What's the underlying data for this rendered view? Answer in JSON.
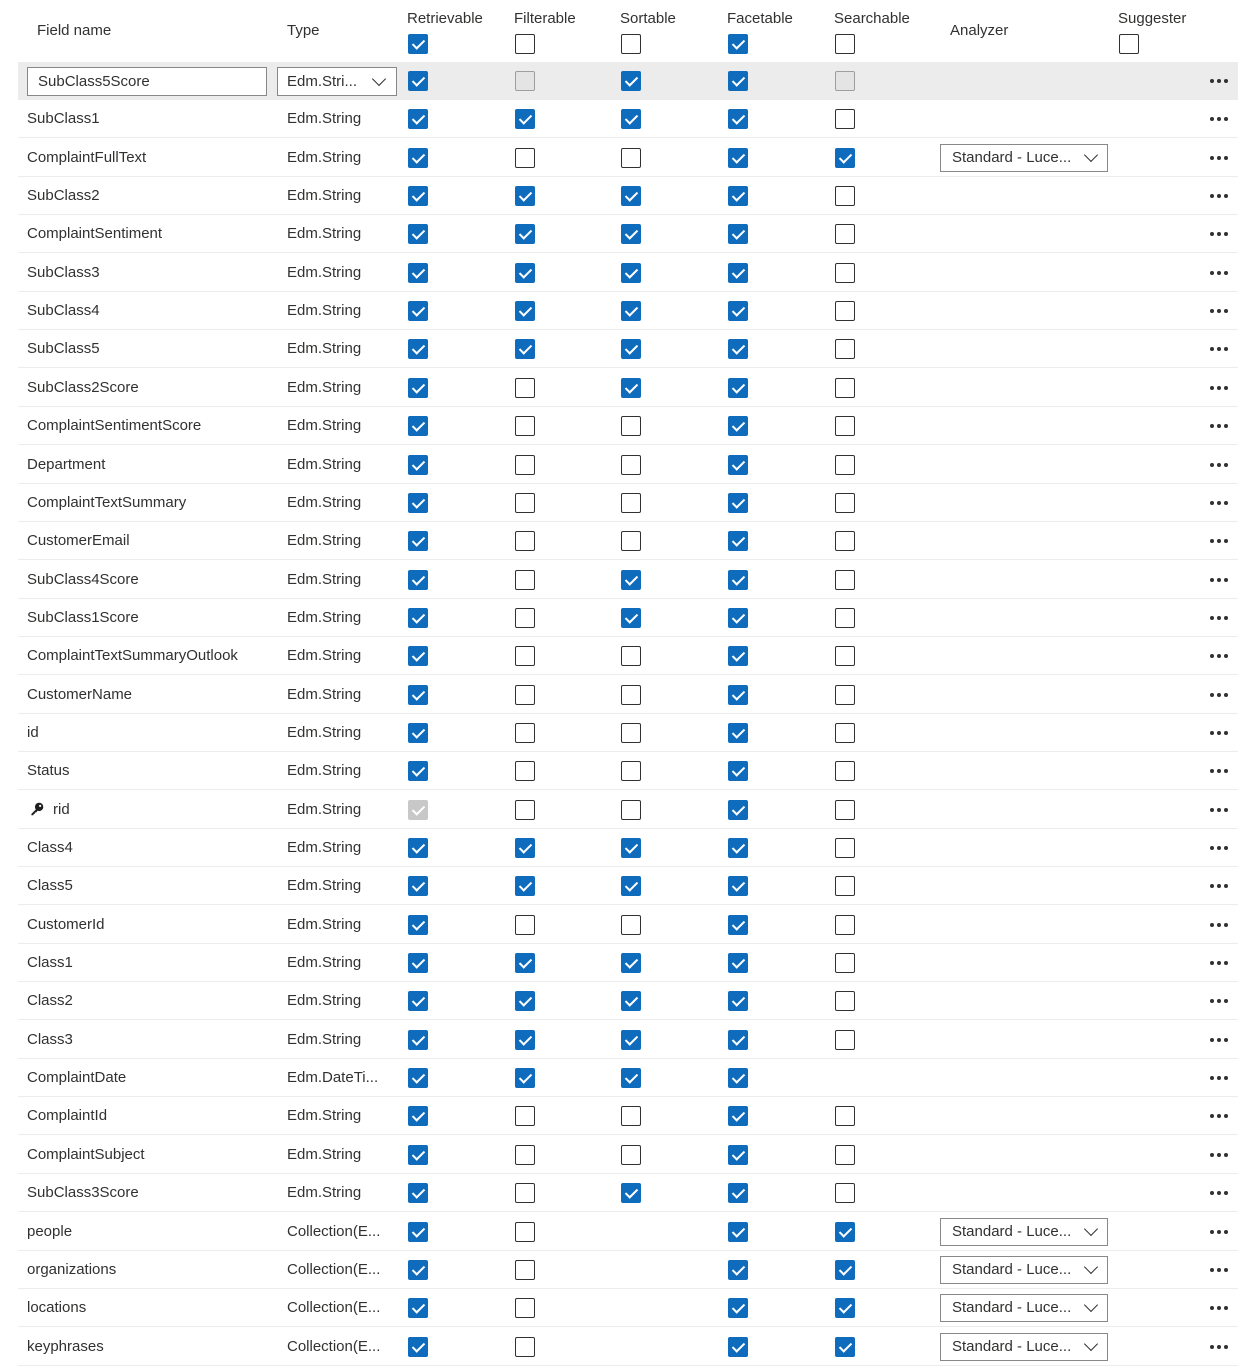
{
  "headers": {
    "field_name": "Field name",
    "type": "Type",
    "retrievable": "Retrievable",
    "filterable": "Filterable",
    "sortable": "Sortable",
    "facetable": "Facetable",
    "searchable": "Searchable",
    "analyzer": "Analyzer",
    "suggester": "Suggester"
  },
  "header_checks": {
    "retrievable": true,
    "filterable": false,
    "sortable": false,
    "facetable": true,
    "searchable": false,
    "suggester": false
  },
  "colors": {
    "accent": "#0f6cbd",
    "row_highlight": "#ececec"
  },
  "rows": [
    {
      "name": "SubClass5Score",
      "type": "Edm.Stri...",
      "r": true,
      "f": false,
      "s": true,
      "fa": true,
      "se": false,
      "an": "",
      "editing": true,
      "f_disabled": true,
      "se_disabled": true
    },
    {
      "name": "SubClass1",
      "type": "Edm.String",
      "r": true,
      "f": true,
      "s": true,
      "fa": true,
      "se": false,
      "an": ""
    },
    {
      "name": "ComplaintFullText",
      "type": "Edm.String",
      "r": true,
      "f": false,
      "s": false,
      "fa": true,
      "se": true,
      "an": "Standard - Luce..."
    },
    {
      "name": "SubClass2",
      "type": "Edm.String",
      "r": true,
      "f": true,
      "s": true,
      "fa": true,
      "se": false,
      "an": ""
    },
    {
      "name": "ComplaintSentiment",
      "type": "Edm.String",
      "r": true,
      "f": true,
      "s": true,
      "fa": true,
      "se": false,
      "an": ""
    },
    {
      "name": "SubClass3",
      "type": "Edm.String",
      "r": true,
      "f": true,
      "s": true,
      "fa": true,
      "se": false,
      "an": ""
    },
    {
      "name": "SubClass4",
      "type": "Edm.String",
      "r": true,
      "f": true,
      "s": true,
      "fa": true,
      "se": false,
      "an": ""
    },
    {
      "name": "SubClass5",
      "type": "Edm.String",
      "r": true,
      "f": true,
      "s": true,
      "fa": true,
      "se": false,
      "an": ""
    },
    {
      "name": "SubClass2Score",
      "type": "Edm.String",
      "r": true,
      "f": false,
      "s": true,
      "fa": true,
      "se": false,
      "an": ""
    },
    {
      "name": "ComplaintSentimentScore",
      "type": "Edm.String",
      "r": true,
      "f": false,
      "s": false,
      "fa": true,
      "se": false,
      "an": ""
    },
    {
      "name": "Department",
      "type": "Edm.String",
      "r": true,
      "f": false,
      "s": false,
      "fa": true,
      "se": false,
      "an": ""
    },
    {
      "name": "ComplaintTextSummary",
      "type": "Edm.String",
      "r": true,
      "f": false,
      "s": false,
      "fa": true,
      "se": false,
      "an": ""
    },
    {
      "name": "CustomerEmail",
      "type": "Edm.String",
      "r": true,
      "f": false,
      "s": false,
      "fa": true,
      "se": false,
      "an": ""
    },
    {
      "name": "SubClass4Score",
      "type": "Edm.String",
      "r": true,
      "f": false,
      "s": true,
      "fa": true,
      "se": false,
      "an": ""
    },
    {
      "name": "SubClass1Score",
      "type": "Edm.String",
      "r": true,
      "f": false,
      "s": true,
      "fa": true,
      "se": false,
      "an": ""
    },
    {
      "name": "ComplaintTextSummaryOutlook",
      "type": "Edm.String",
      "r": true,
      "f": false,
      "s": false,
      "fa": true,
      "se": false,
      "an": ""
    },
    {
      "name": "CustomerName",
      "type": "Edm.String",
      "r": true,
      "f": false,
      "s": false,
      "fa": true,
      "se": false,
      "an": ""
    },
    {
      "name": "id",
      "type": "Edm.String",
      "r": true,
      "f": false,
      "s": false,
      "fa": true,
      "se": false,
      "an": ""
    },
    {
      "name": "Status",
      "type": "Edm.String",
      "r": true,
      "f": false,
      "s": false,
      "fa": true,
      "se": false,
      "an": ""
    },
    {
      "name": "rid",
      "type": "Edm.String",
      "r": true,
      "f": false,
      "s": false,
      "fa": true,
      "se": false,
      "an": "",
      "key": true,
      "r_disabled": true
    },
    {
      "name": "Class4",
      "type": "Edm.String",
      "r": true,
      "f": true,
      "s": true,
      "fa": true,
      "se": false,
      "an": ""
    },
    {
      "name": "Class5",
      "type": "Edm.String",
      "r": true,
      "f": true,
      "s": true,
      "fa": true,
      "se": false,
      "an": ""
    },
    {
      "name": "CustomerId",
      "type": "Edm.String",
      "r": true,
      "f": false,
      "s": false,
      "fa": true,
      "se": false,
      "an": ""
    },
    {
      "name": "Class1",
      "type": "Edm.String",
      "r": true,
      "f": true,
      "s": true,
      "fa": true,
      "se": false,
      "an": ""
    },
    {
      "name": "Class2",
      "type": "Edm.String",
      "r": true,
      "f": true,
      "s": true,
      "fa": true,
      "se": false,
      "an": ""
    },
    {
      "name": "Class3",
      "type": "Edm.String",
      "r": true,
      "f": true,
      "s": true,
      "fa": true,
      "se": false,
      "an": ""
    },
    {
      "name": "ComplaintDate",
      "type": "Edm.DateTi...",
      "r": true,
      "f": true,
      "s": true,
      "fa": true,
      "se": null,
      "an": ""
    },
    {
      "name": "ComplaintId",
      "type": "Edm.String",
      "r": true,
      "f": false,
      "s": false,
      "fa": true,
      "se": false,
      "an": ""
    },
    {
      "name": "ComplaintSubject",
      "type": "Edm.String",
      "r": true,
      "f": false,
      "s": false,
      "fa": true,
      "se": false,
      "an": ""
    },
    {
      "name": "SubClass3Score",
      "type": "Edm.String",
      "r": true,
      "f": false,
      "s": true,
      "fa": true,
      "se": false,
      "an": ""
    },
    {
      "name": "people",
      "type": "Collection(E...",
      "r": true,
      "f": false,
      "s": null,
      "fa": true,
      "se": true,
      "an": "Standard - Luce..."
    },
    {
      "name": "organizations",
      "type": "Collection(E...",
      "r": true,
      "f": false,
      "s": null,
      "fa": true,
      "se": true,
      "an": "Standard - Luce..."
    },
    {
      "name": "locations",
      "type": "Collection(E...",
      "r": true,
      "f": false,
      "s": null,
      "fa": true,
      "se": true,
      "an": "Standard - Luce..."
    },
    {
      "name": "keyphrases",
      "type": "Collection(E...",
      "r": true,
      "f": false,
      "s": null,
      "fa": true,
      "se": true,
      "an": "Standard - Luce..."
    }
  ]
}
